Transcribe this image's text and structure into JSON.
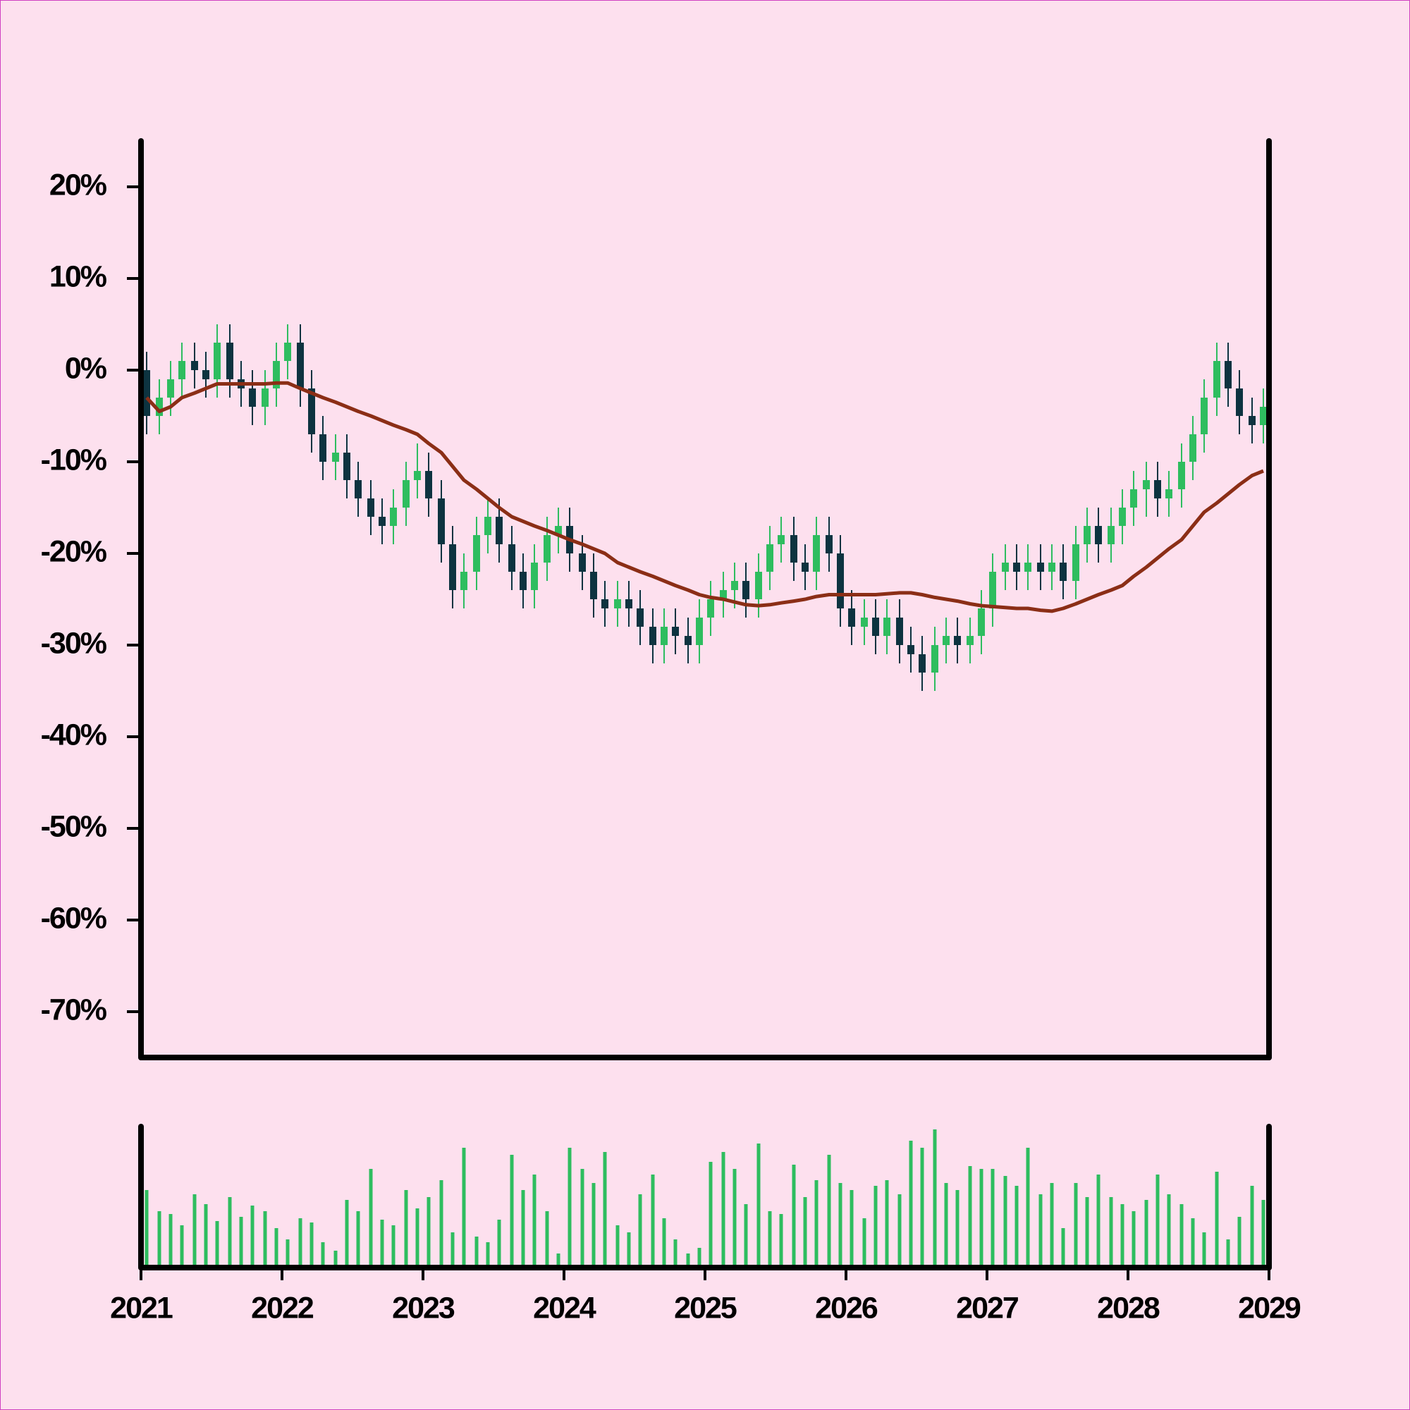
{
  "chart_data": {
    "type": "candlestick",
    "x": [
      2021.04,
      2021.13,
      2021.21,
      2021.29,
      2021.38,
      2021.46,
      2021.54,
      2021.63,
      2021.71,
      2021.79,
      2021.88,
      2021.96,
      2022.04,
      2022.13,
      2022.21,
      2022.29,
      2022.38,
      2022.46,
      2022.54,
      2022.63,
      2022.71,
      2022.79,
      2022.88,
      2022.96,
      2023.04,
      2023.13,
      2023.21,
      2023.29,
      2023.38,
      2023.46,
      2023.54,
      2023.63,
      2023.71,
      2023.79,
      2023.88,
      2023.96,
      2024.04,
      2024.13,
      2024.21,
      2024.29,
      2024.38,
      2024.46,
      2024.54,
      2024.63,
      2024.71,
      2024.79,
      2024.88,
      2024.96,
      2025.04,
      2025.13,
      2025.21,
      2025.29,
      2025.38,
      2025.46,
      2025.54,
      2025.63,
      2025.71,
      2025.79,
      2025.88,
      2025.96,
      2026.04,
      2026.13,
      2026.21,
      2026.29,
      2026.38,
      2026.46,
      2026.54,
      2026.63,
      2026.71,
      2026.79,
      2026.88,
      2026.96,
      2027.04,
      2027.13,
      2027.21,
      2027.29,
      2027.38,
      2027.46,
      2027.54,
      2027.63,
      2027.71,
      2027.79,
      2027.88,
      2027.96,
      2028.04,
      2028.13,
      2028.21,
      2028.29,
      2028.38,
      2028.46,
      2028.54,
      2028.63,
      2028.71,
      2028.79,
      2028.88,
      2028.96
    ],
    "open": [
      0,
      -5,
      -3,
      -1,
      1,
      0,
      -1,
      3,
      -1,
      -2,
      -4,
      -2,
      1,
      3,
      -2,
      -7,
      -10,
      -9,
      -12,
      -14,
      -16,
      -17,
      -15,
      -12,
      -11,
      -14,
      -19,
      -24,
      -22,
      -18,
      -16,
      -19,
      -22,
      -24,
      -21,
      -18,
      -17,
      -20,
      -22,
      -25,
      -26,
      -25,
      -26,
      -28,
      -30,
      -28,
      -29,
      -30,
      -27,
      -25,
      -24,
      -23,
      -25,
      -22,
      -19,
      -18,
      -21,
      -22,
      -18,
      -20,
      -26,
      -28,
      -27,
      -29,
      -27,
      -30,
      -31,
      -33,
      -30,
      -29,
      -30,
      -29,
      -26,
      -22,
      -21,
      -22,
      -21,
      -22,
      -21,
      -23,
      -19,
      -17,
      -19,
      -17,
      -15,
      -13,
      -12,
      -14,
      -13,
      -10,
      -7,
      -3,
      1,
      -2,
      -5,
      -6
    ],
    "high": [
      2,
      -1,
      1,
      3,
      3,
      2,
      5,
      5,
      1,
      0,
      0,
      3,
      5,
      5,
      0,
      -5,
      -7,
      -7,
      -10,
      -12,
      -14,
      -13,
      -10,
      -8,
      -9,
      -12,
      -17,
      -20,
      -16,
      -14,
      -14,
      -17,
      -20,
      -19,
      -16,
      -15,
      -15,
      -18,
      -20,
      -23,
      -23,
      -23,
      -24,
      -26,
      -26,
      -26,
      -27,
      -25,
      -23,
      -22,
      -21,
      -21,
      -20,
      -17,
      -16,
      -16,
      -19,
      -16,
      -16,
      -18,
      -24,
      -25,
      -25,
      -25,
      -25,
      -28,
      -29,
      -28,
      -27,
      -27,
      -27,
      -24,
      -20,
      -19,
      -19,
      -19,
      -19,
      -19,
      -19,
      -17,
      -15,
      -15,
      -15,
      -13,
      -11,
      -10,
      -10,
      -11,
      -8,
      -5,
      -1,
      3,
      3,
      0,
      -3,
      -2
    ],
    "low": [
      -7,
      -7,
      -5,
      -3,
      -2,
      -3,
      -3,
      -3,
      -4,
      -6,
      -6,
      -4,
      -1,
      -4,
      -9,
      -12,
      -12,
      -14,
      -16,
      -18,
      -19,
      -19,
      -17,
      -14,
      -16,
      -21,
      -26,
      -26,
      -24,
      -20,
      -21,
      -24,
      -26,
      -26,
      -23,
      -20,
      -22,
      -24,
      -27,
      -28,
      -28,
      -28,
      -30,
      -32,
      -32,
      -31,
      -32,
      -32,
      -29,
      -27,
      -26,
      -27,
      -27,
      -24,
      -21,
      -23,
      -24,
      -24,
      -22,
      -28,
      -30,
      -30,
      -31,
      -31,
      -32,
      -33,
      -35,
      -35,
      -32,
      -32,
      -32,
      -31,
      -28,
      -24,
      -24,
      -24,
      -24,
      -24,
      -25,
      -25,
      -21,
      -21,
      -21,
      -19,
      -17,
      -16,
      -16,
      -16,
      -15,
      -12,
      -9,
      -5,
      -4,
      -7,
      -8,
      -8
    ],
    "close": [
      -5,
      -3,
      -1,
      1,
      0,
      -1,
      3,
      -1,
      -2,
      -4,
      -2,
      1,
      3,
      -2,
      -7,
      -10,
      -9,
      -12,
      -14,
      -16,
      -17,
      -15,
      -12,
      -11,
      -14,
      -19,
      -24,
      -22,
      -18,
      -16,
      -19,
      -22,
      -24,
      -21,
      -18,
      -17,
      -20,
      -22,
      -25,
      -26,
      -25,
      -26,
      -28,
      -30,
      -28,
      -29,
      -30,
      -27,
      -25,
      -24,
      -23,
      -25,
      -22,
      -19,
      -18,
      -21,
      -22,
      -18,
      -20,
      -26,
      -28,
      -27,
      -29,
      -27,
      -30,
      -31,
      -33,
      -30,
      -29,
      -30,
      -29,
      -26,
      -22,
      -21,
      -22,
      -21,
      -22,
      -21,
      -23,
      -19,
      -17,
      -19,
      -17,
      -15,
      -13,
      -12,
      -14,
      -13,
      -10,
      -7,
      -3,
      1,
      -2,
      -5,
      -6,
      -4
    ],
    "up_color": "#2ebd5f",
    "down_color": "#0d3340",
    "ma": {
      "color": "#8b2e16",
      "values": [
        -3,
        -4.5,
        -4,
        -3,
        -2.5,
        -2,
        -1.5,
        -1.5,
        -1.5,
        -1.5,
        -1.5,
        -1.4,
        -1.4,
        -2,
        -2.5,
        -3,
        -3.5,
        -4,
        -4.5,
        -5,
        -5.5,
        -6,
        -6.5,
        -7,
        -8,
        -9,
        -10.5,
        -12,
        -13,
        -14,
        -15,
        -16,
        -16.5,
        -17,
        -17.5,
        -18,
        -18.5,
        -19,
        -19.5,
        -20,
        -21,
        -21.5,
        -22,
        -22.5,
        -23,
        -23.5,
        -24,
        -24.5,
        -24.8,
        -25,
        -25.3,
        -25.6,
        -25.7,
        -25.6,
        -25.4,
        -25.2,
        -25,
        -24.7,
        -24.5,
        -24.5,
        -24.5,
        -24.5,
        -24.5,
        -24.4,
        -24.3,
        -24.3,
        -24.5,
        -24.8,
        -25,
        -25.2,
        -25.5,
        -25.7,
        -25.8,
        -25.9,
        -26,
        -26,
        -26.2,
        -26.3,
        -26,
        -25.5,
        -25,
        -24.5,
        -24,
        -23.5,
        -22.5,
        -21.5,
        -20.5,
        -19.5,
        -18.5,
        -17,
        -15.5,
        -14.5,
        -13.5,
        -12.5,
        -11.5,
        -11
      ]
    },
    "volume": {
      "color": "#2ebd5f",
      "ylim": [
        0,
        100
      ],
      "values": [
        55,
        40,
        38,
        30,
        52,
        45,
        33,
        50,
        36,
        44,
        40,
        28,
        20,
        35,
        32,
        18,
        12,
        48,
        40,
        70,
        34,
        30,
        55,
        42,
        50,
        62,
        25,
        85,
        22,
        18,
        34,
        80,
        55,
        66,
        40,
        10,
        85,
        70,
        60,
        82,
        30,
        25,
        52,
        66,
        35,
        20,
        10,
        14,
        75,
        82,
        70,
        45,
        88,
        40,
        38,
        73,
        50,
        62,
        80,
        60,
        55,
        35,
        58,
        62,
        52,
        90,
        85,
        98,
        60,
        55,
        72,
        70,
        70,
        65,
        58,
        85,
        52,
        60,
        28,
        60,
        50,
        66,
        50,
        45,
        40,
        48,
        66,
        52,
        45,
        35,
        25,
        68,
        20,
        36,
        58,
        48
      ]
    },
    "xlim": [
      2021,
      2029
    ],
    "xticks": [
      2021,
      2022,
      2023,
      2024,
      2025,
      2026,
      2027,
      2028,
      2029
    ],
    "ylim": [
      -75,
      25
    ],
    "yticks": [
      {
        "value": 20,
        "label": "20%"
      },
      {
        "value": 10,
        "label": "10%"
      },
      {
        "value": 0,
        "label": "0%"
      },
      {
        "value": -10,
        "label": "-10%"
      },
      {
        "value": -20,
        "label": "-20%"
      },
      {
        "value": -30,
        "label": "-30%"
      },
      {
        "value": -40,
        "label": "-40%"
      },
      {
        "value": -50,
        "label": "-50%"
      },
      {
        "value": -60,
        "label": "-60%"
      },
      {
        "value": -70,
        "label": "-70%"
      }
    ]
  }
}
